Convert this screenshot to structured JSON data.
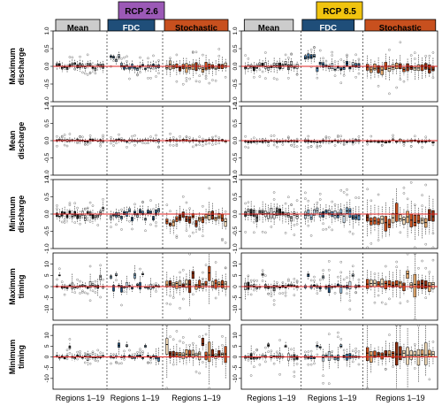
{
  "scenarios": [
    "RCP 2.6",
    "RCP 8.5"
  ],
  "scenario_colors": [
    "#9b59b6",
    "#f1c40f"
  ],
  "methods": [
    {
      "label": "Mean",
      "bg": "#cccccc",
      "fg": "#000000"
    },
    {
      "label": "FDC",
      "bg": "#1f4e79",
      "fg": "#ffffff"
    },
    {
      "label": "Stochastic",
      "bg": "#c8501e",
      "fg": "#000000"
    }
  ],
  "x_axis_label": "Regions 1–19",
  "rows": [
    {
      "label_line1": "Maximum",
      "label_line2": "discharge",
      "ylim": [
        -1.0,
        1.0
      ],
      "ticks": [
        "1.0",
        "0.5",
        "0.0",
        "-0.5",
        "-1.0"
      ],
      "tick_values": [
        1.0,
        0.5,
        0.0,
        -0.5,
        -1.0
      ]
    },
    {
      "label_line1": "Mean",
      "label_line2": "discharge",
      "ylim": [
        -1.0,
        1.0
      ],
      "ticks": [
        "1.0",
        "0.5",
        "0.0",
        "-0.5",
        "-1.0"
      ],
      "tick_values": [
        1.0,
        0.5,
        0.0,
        -0.5,
        -1.0
      ]
    },
    {
      "label_line1": "Minimum",
      "label_line2": "discharge",
      "ylim": [
        -1.0,
        1.0
      ],
      "ticks": [
        "1.0",
        "0.5",
        "0.0",
        "-0.5",
        "-1.0"
      ],
      "tick_values": [
        1.0,
        0.5,
        0.0,
        -0.5,
        -1.0
      ]
    },
    {
      "label_line1": "Maximum",
      "label_line2": "timing",
      "ylim": [
        -15,
        15
      ],
      "ticks": [
        "10",
        "5",
        "0",
        "-5",
        "-10"
      ],
      "tick_values": [
        10,
        5,
        0,
        -5,
        -10
      ]
    },
    {
      "label_line1": "Minimum",
      "label_line2": "timing",
      "ylim": [
        -15,
        15
      ],
      "ticks": [
        "10",
        "5",
        "0",
        "-5",
        "-10"
      ],
      "tick_values": [
        10,
        5,
        0,
        -5,
        -10
      ]
    }
  ],
  "chart_data": {
    "type": "box",
    "description_source": "values estimated from figure",
    "regions_per_method": 19,
    "methods": [
      "Mean",
      "FDC",
      "Stochastic"
    ],
    "scenarios": [
      "RCP 2.6",
      "RCP 8.5"
    ],
    "rows": [
      "Maximum discharge",
      "Mean discharge",
      "Minimum discharge",
      "Maximum timing",
      "Minimum timing"
    ],
    "ylims": [
      [
        -1.0,
        1.0
      ],
      [
        -1.0,
        1.0
      ],
      [
        -1.0,
        1.0
      ],
      [
        -15,
        15
      ],
      [
        -15,
        15
      ]
    ],
    "reference_line": 0,
    "medians_approx": {
      "RCP 2.6": {
        "Maximum discharge": {
          "Mean": 0.05,
          "FDC": 0.05,
          "Stochastic": 0.0
        },
        "Mean discharge": {
          "Mean": 0.0,
          "FDC": 0.0,
          "Stochastic": -0.02
        },
        "Minimum discharge": {
          "Mean": 0.0,
          "FDC": 0.0,
          "Stochastic": -0.15
        },
        "Maximum timing": {
          "Mean": 0.0,
          "FDC": 0.0,
          "Stochastic": 1.0
        },
        "Minimum timing": {
          "Mean": 0.0,
          "FDC": 0.0,
          "Stochastic": 0.5
        }
      },
      "RCP 8.5": {
        "Maximum discharge": {
          "Mean": 0.05,
          "FDC": 0.05,
          "Stochastic": -0.05
        },
        "Mean discharge": {
          "Mean": -0.02,
          "FDC": -0.02,
          "Stochastic": -0.05
        },
        "Minimum discharge": {
          "Mean": 0.1,
          "FDC": 0.0,
          "Stochastic": -0.1
        },
        "Maximum timing": {
          "Mean": 0.0,
          "FDC": 0.0,
          "Stochastic": 2.0
        },
        "Minimum timing": {
          "Mean": 0.0,
          "FDC": 0.0,
          "Stochastic": 1.0
        }
      }
    }
  }
}
